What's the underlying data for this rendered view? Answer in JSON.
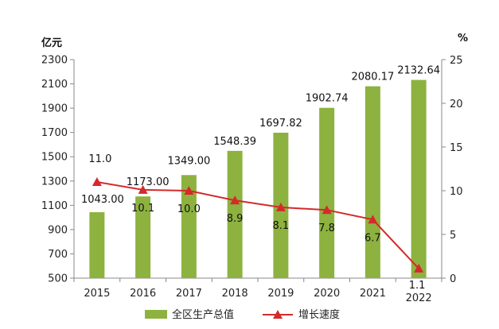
{
  "chart_data": {
    "type": "bar+line",
    "categories": [
      "2015",
      "2016",
      "2017",
      "2018",
      "2019",
      "2020",
      "2021",
      "2022"
    ],
    "series": [
      {
        "name": "全区生产总值",
        "type": "bar",
        "axis": "left",
        "color": "#8db23f",
        "values": [
          1043.0,
          1173.0,
          1349.0,
          1548.39,
          1697.82,
          1902.74,
          2080.17,
          2132.64
        ],
        "labels": [
          "1043.00",
          "1173.00",
          "1349.00",
          "1548.39",
          "1697.82",
          "1902.74",
          "2080.17",
          "2132.64"
        ]
      },
      {
        "name": "增长速度",
        "type": "line",
        "axis": "right",
        "color": "#d42a2a",
        "values": [
          11.0,
          10.1,
          10.0,
          8.9,
          8.1,
          7.8,
          6.7,
          1.1
        ],
        "labels": [
          "11.0",
          "10.1",
          "10.0",
          "8.9",
          "8.1",
          "7.8",
          "6.7",
          "1.1"
        ]
      }
    ],
    "y_left": {
      "unit": "亿元",
      "range": [
        500,
        2300
      ],
      "ticks": [
        "500",
        "700",
        "900",
        "1100",
        "1300",
        "1500",
        "1700",
        "1900",
        "2100",
        "2300"
      ]
    },
    "y_right": {
      "unit": "%",
      "range": [
        0,
        25
      ],
      "ticks": [
        "0",
        "5",
        "10",
        "15",
        "20",
        "25"
      ]
    },
    "legend_position": "bottom",
    "grid": false
  }
}
